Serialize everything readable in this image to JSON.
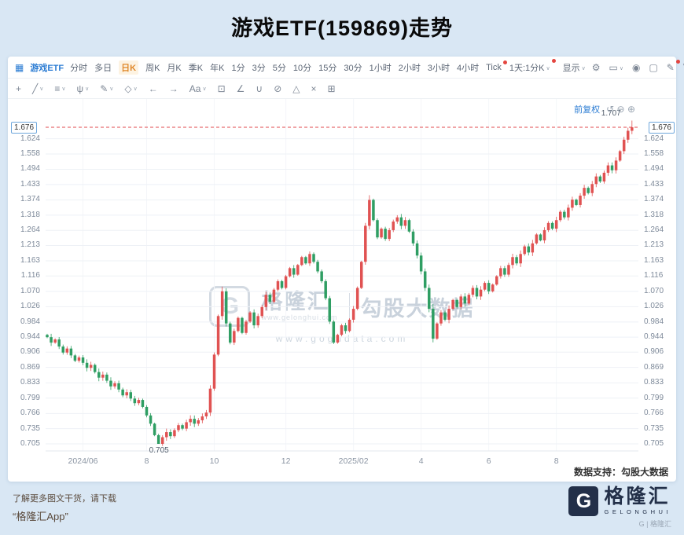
{
  "page": {
    "title": "游戏ETF(159869)走势"
  },
  "colors": {
    "up": "#e05252",
    "down": "#2f9e63",
    "price_line": "#e0484e",
    "accent_blue": "#2b7cd3",
    "active_timeframe": "#e0882a",
    "brand_navy": "#233049"
  },
  "toolbar": {
    "symbol_icon": "▦",
    "symbol": "游戏ETF",
    "timeframes": [
      {
        "label": "分时"
      },
      {
        "label": "多日"
      },
      {
        "label": "日K",
        "active": true
      },
      {
        "label": "周K"
      },
      {
        "label": "月K"
      },
      {
        "label": "季K"
      },
      {
        "label": "年K"
      },
      {
        "label": "1分"
      },
      {
        "label": "3分"
      },
      {
        "label": "5分"
      },
      {
        "label": "10分"
      },
      {
        "label": "15分"
      },
      {
        "label": "30分"
      },
      {
        "label": "1小时"
      },
      {
        "label": "2小时"
      },
      {
        "label": "3小时"
      },
      {
        "label": "4小时"
      },
      {
        "label": "Tick",
        "badge": true
      }
    ],
    "interval": {
      "label": "1天:1分K",
      "badge": true
    },
    "display_label": "显示",
    "right_icons": [
      {
        "name": "settings-icon",
        "glyph": "⚙"
      },
      {
        "name": "layout-icon",
        "glyph": "▭",
        "chevron": true
      },
      {
        "name": "camera-icon",
        "glyph": "◉"
      },
      {
        "name": "theme-icon",
        "glyph": "▢"
      },
      {
        "name": "edit-icon",
        "glyph": "✎",
        "badge": true
      },
      {
        "name": "compare-vs-label",
        "glyph": "VS",
        "text": true
      },
      {
        "name": "panel-icon",
        "glyph": "▤"
      }
    ]
  },
  "drawbar": {
    "tools": [
      {
        "name": "cursor-tool-icon",
        "glyph": "+"
      },
      {
        "name": "trendline-tool-icon",
        "glyph": "╱",
        "chevron": true
      },
      {
        "name": "fibonacci-tool-icon",
        "glyph": "≡",
        "chevron": true
      },
      {
        "name": "pitchfork-tool-icon",
        "glyph": "ψ",
        "chevron": true
      },
      {
        "name": "brush-tool-icon",
        "glyph": "✎",
        "chevron": true
      },
      {
        "name": "shapes-tool-icon",
        "glyph": "◇",
        "chevron": true
      },
      {
        "name": "arrow-left-icon",
        "glyph": "←"
      },
      {
        "name": "arrow-right-icon",
        "glyph": "→"
      },
      {
        "name": "text-tool-icon",
        "glyph": "Aa",
        "chevron": true
      },
      {
        "name": "comment-tool-icon",
        "glyph": "⊡"
      },
      {
        "name": "measure-tool-icon",
        "glyph": "∠"
      },
      {
        "name": "magnet-tool-icon",
        "glyph": "∪"
      },
      {
        "name": "eraser-tool-icon",
        "glyph": "⊘"
      },
      {
        "name": "ruler-tool-icon",
        "glyph": "△"
      },
      {
        "name": "delete-tool-icon",
        "glyph": "×"
      },
      {
        "name": "grid-tool-icon",
        "glyph": "⊞"
      }
    ]
  },
  "chart": {
    "adjust_label": "前复权",
    "adjust_icons": [
      {
        "name": "undo-icon",
        "glyph": "↺"
      },
      {
        "name": "zoom-out-icon",
        "glyph": "⊖"
      },
      {
        "name": "zoom-in-icon",
        "glyph": "⊕"
      }
    ],
    "price_box": "1.676",
    "high_label": "1.707",
    "low_label": "0.705",
    "datasource": "数据支持：勾股大数据",
    "watermark": {
      "g": "G",
      "brand": "格隆汇",
      "sub_url": "www.gelonghui.com",
      "product": "勾股大数据",
      "url": "www.gogudata.com"
    }
  },
  "chart_data": {
    "type": "candlestick",
    "title": "游戏ETF(159869)走势",
    "scale": "log",
    "last": 1.676,
    "high": 1.707,
    "low": 0.705,
    "first_open": 0.95,
    "high_index": 147,
    "low_index": 28,
    "wick_boosts": [
      44,
      81,
      97
    ],
    "up_color": "#e05252",
    "down_color": "#2f9e63",
    "y_ticks": [
      "1.624",
      "1.558",
      "1.494",
      "1.433",
      "1.374",
      "1.318",
      "1.264",
      "1.213",
      "1.163",
      "1.116",
      "1.070",
      "1.026",
      "0.984",
      "0.944",
      "0.906",
      "0.869",
      "0.833",
      "0.799",
      "0.766",
      "0.735",
      "0.705"
    ],
    "x_ticks": [
      {
        "label": "2024/06",
        "index": 9
      },
      {
        "label": "8",
        "index": 25
      },
      {
        "label": "10",
        "index": 42
      },
      {
        "label": "12",
        "index": 60
      },
      {
        "label": "2025/02",
        "index": 77
      },
      {
        "label": "4",
        "index": 94
      },
      {
        "label": "6",
        "index": 111
      },
      {
        "label": "8",
        "index": 128
      }
    ],
    "closes": [
      0.944,
      0.93,
      0.938,
      0.92,
      0.905,
      0.915,
      0.898,
      0.885,
      0.893,
      0.88,
      0.868,
      0.875,
      0.858,
      0.845,
      0.852,
      0.838,
      0.825,
      0.832,
      0.818,
      0.805,
      0.812,
      0.798,
      0.788,
      0.795,
      0.78,
      0.762,
      0.745,
      0.722,
      0.705,
      0.718,
      0.728,
      0.72,
      0.732,
      0.742,
      0.735,
      0.748,
      0.755,
      0.745,
      0.752,
      0.76,
      0.768,
      0.82,
      0.9,
      1.0,
      1.07,
      0.98,
      0.93,
      0.96,
      0.995,
      0.955,
      0.985,
      1.01,
      0.975,
      1.0,
      1.025,
      1.06,
      1.04,
      1.075,
      1.1,
      1.08,
      1.115,
      1.14,
      1.12,
      1.15,
      1.175,
      1.155,
      1.185,
      1.16,
      1.13,
      1.1,
      1.05,
      0.985,
      0.93,
      0.95,
      0.975,
      0.96,
      0.99,
      1.02,
      1.08,
      1.16,
      1.28,
      1.374,
      1.3,
      1.24,
      1.27,
      1.235,
      1.265,
      1.295,
      1.31,
      1.28,
      1.3,
      1.26,
      1.22,
      1.18,
      1.13,
      1.08,
      1.02,
      0.94,
      0.98,
      1.01,
      0.99,
      1.02,
      1.045,
      1.025,
      1.055,
      1.035,
      1.06,
      1.08,
      1.055,
      1.075,
      1.095,
      1.07,
      1.09,
      1.115,
      1.14,
      1.12,
      1.15,
      1.175,
      1.155,
      1.185,
      1.21,
      1.19,
      1.22,
      1.25,
      1.23,
      1.265,
      1.29,
      1.27,
      1.3,
      1.33,
      1.31,
      1.345,
      1.375,
      1.355,
      1.39,
      1.42,
      1.4,
      1.435,
      1.465,
      1.445,
      1.48,
      1.51,
      1.49,
      1.53,
      1.57,
      1.62,
      1.66,
      1.676
    ]
  },
  "footer": {
    "promo_line1": "了解更多图文干货，请下载",
    "promo_line2": "“格隆汇App”",
    "logo_letter": "G",
    "brand": "格隆汇",
    "brand_sub": "GELONGHUI",
    "small_brand": "G | 格隆汇"
  }
}
